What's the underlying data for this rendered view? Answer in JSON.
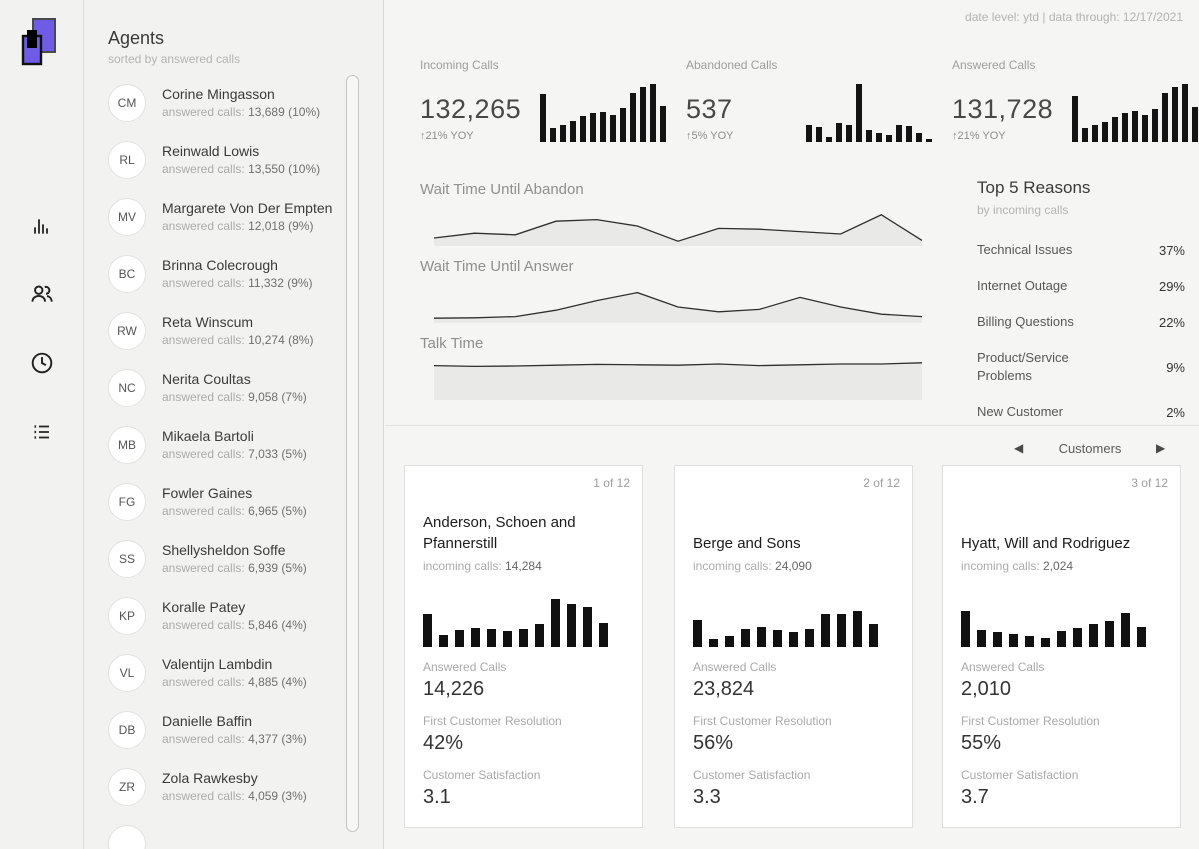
{
  "window": {
    "date_note": "date level: ytd | data through: 12/17/2021"
  },
  "rail": {
    "logo": "overlapping-cards-logo",
    "icons": [
      "bar-chart-icon",
      "people-icon",
      "clock-icon",
      "list-icon"
    ],
    "accent_purple": "#6e5be6"
  },
  "agents": {
    "title": "Agents",
    "subtitle": "sorted by answered calls",
    "calls_label": "answered calls:",
    "items": [
      {
        "initials": "CM",
        "name": "Corine Mingasson",
        "calls_value": "13,689 (10%)"
      },
      {
        "initials": "RL",
        "name": "Reinwald Lowis",
        "calls_value": "13,550 (10%)"
      },
      {
        "initials": "MV",
        "name": "Margarete Von Der Empten",
        "calls_value": "12,018 (9%)"
      },
      {
        "initials": "BC",
        "name": "Brinna Colecrough",
        "calls_value": "11,332 (9%)"
      },
      {
        "initials": "RW",
        "name": "Reta Winscum",
        "calls_value": "10,274 (8%)"
      },
      {
        "initials": "NC",
        "name": "Nerita Coultas",
        "calls_value": "9,058 (7%)"
      },
      {
        "initials": "MB",
        "name": "Mikaela Bartoli",
        "calls_value": "7,033 (5%)"
      },
      {
        "initials": "FG",
        "name": "Fowler Gaines",
        "calls_value": "6,965 (5%)"
      },
      {
        "initials": "SS",
        "name": "Shellysheldon Soffe",
        "calls_value": "6,939 (5%)"
      },
      {
        "initials": "KP",
        "name": "Koralle Patey",
        "calls_value": "5,846 (4%)"
      },
      {
        "initials": "VL",
        "name": "Valentijn Lambdin",
        "calls_value": "4,885 (4%)"
      },
      {
        "initials": "DB",
        "name": "Danielle Baffin",
        "calls_value": "4,377 (3%)"
      },
      {
        "initials": "ZR",
        "name": "Zola Rawkesby",
        "calls_value": "4,059 (3%)"
      }
    ]
  },
  "kpis": [
    {
      "label": "Incoming Calls",
      "value": "132,265",
      "yoy": "↑21% YOY",
      "bars": [
        0.82,
        0.25,
        0.3,
        0.36,
        0.44,
        0.5,
        0.52,
        0.46,
        0.58,
        0.85,
        0.95,
        1.0,
        0.62
      ]
    },
    {
      "label": "Abandoned Calls",
      "value": "537",
      "yoy": "↑5% YOY",
      "bars": [
        0.3,
        0.26,
        0.08,
        0.32,
        0.3,
        1.0,
        0.2,
        0.16,
        0.12,
        0.3,
        0.27,
        0.16,
        0.06
      ]
    },
    {
      "label": "Answered Calls",
      "value": "131,728",
      "yoy": "↑21% YOY",
      "bars": [
        0.8,
        0.25,
        0.3,
        0.35,
        0.43,
        0.5,
        0.53,
        0.47,
        0.57,
        0.84,
        0.94,
        1.0,
        0.6
      ]
    }
  ],
  "trends": [
    {
      "label": "Wait Time Until Abandon",
      "points": [
        0.2,
        0.32,
        0.28,
        0.62,
        0.66,
        0.5,
        0.12,
        0.44,
        0.42,
        0.36,
        0.3,
        0.78,
        0.14
      ]
    },
    {
      "label": "Wait Time Until Answer",
      "points": [
        0.12,
        0.13,
        0.16,
        0.32,
        0.56,
        0.76,
        0.4,
        0.28,
        0.34,
        0.64,
        0.4,
        0.22,
        0.16
      ]
    },
    {
      "label": "Talk Time",
      "points": [
        0.86,
        0.84,
        0.85,
        0.87,
        0.89,
        0.88,
        0.87,
        0.9,
        0.86,
        0.88,
        0.9,
        0.9,
        0.93
      ]
    }
  ],
  "trend_style": {
    "fill": "#e9e9e8",
    "line": "#2f2f2f"
  },
  "top_reasons": {
    "title": "Top 5 Reasons",
    "subtitle": "by incoming calls",
    "rows": [
      {
        "label": "Technical Issues",
        "value": "37%"
      },
      {
        "label": "Internet Outage",
        "value": "29%"
      },
      {
        "label": "Billing Questions",
        "value": "22%"
      },
      {
        "label": "Product/Service Problems",
        "value": "9%"
      },
      {
        "label": "New Customer",
        "value": "2%"
      }
    ]
  },
  "customers": {
    "label": "Customers",
    "prev_icon": "◀",
    "next_icon": "▶",
    "incoming_label": "incoming calls:",
    "cards": [
      {
        "page": "1 of 12",
        "name": "Anderson, Schoen and Pfannerstill",
        "incoming_value": "14,284",
        "bars": [
          0.55,
          0.2,
          0.28,
          0.32,
          0.3,
          0.26,
          0.3,
          0.38,
          0.8,
          0.72,
          0.66,
          0.4
        ],
        "answered_label": "Answered Calls",
        "answered_value": "14,226",
        "fcr_label": "First Customer Resolution",
        "fcr_value": "42%",
        "csat_label": "Customer Satisfaction",
        "csat_value": "3.1"
      },
      {
        "page": "2 of 12",
        "name": "Berge and Sons",
        "incoming_value": "24,090",
        "bars": [
          0.45,
          0.14,
          0.18,
          0.3,
          0.34,
          0.28,
          0.25,
          0.3,
          0.55,
          0.55,
          0.6,
          0.38
        ],
        "answered_label": "Answered Calls",
        "answered_value": "23,824",
        "fcr_label": "First Customer Resolution",
        "fcr_value": "56%",
        "csat_label": "Customer Satisfaction",
        "csat_value": "3.3"
      },
      {
        "page": "3 of 12",
        "name": "Hyatt, Will and Rodriguez",
        "incoming_value": "2,024",
        "bars": [
          0.6,
          0.28,
          0.25,
          0.22,
          0.18,
          0.15,
          0.26,
          0.32,
          0.38,
          0.44,
          0.56,
          0.34
        ],
        "answered_label": "Answered Calls",
        "answered_value": "2,010",
        "fcr_label": "First Customer Resolution",
        "fcr_value": "55%",
        "csat_label": "Customer Satisfaction",
        "csat_value": "3.7"
      }
    ]
  }
}
